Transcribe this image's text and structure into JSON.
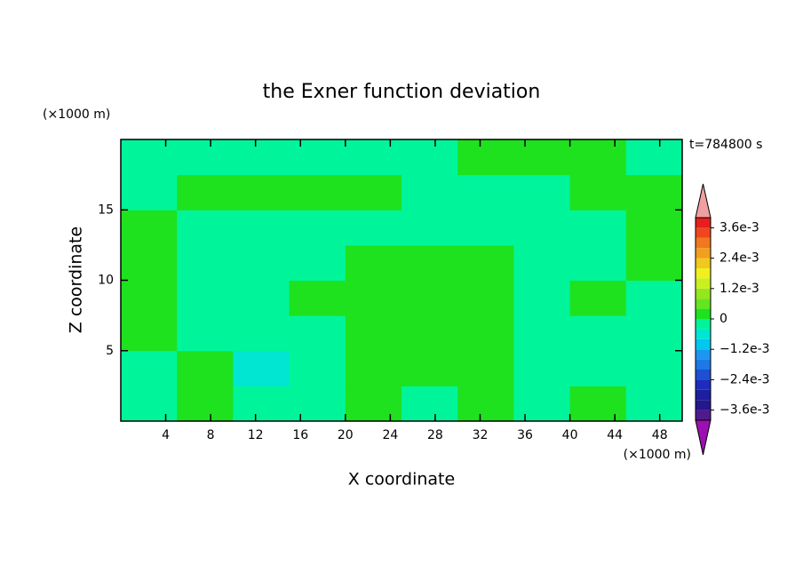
{
  "chart_data": {
    "type": "contour",
    "title": "the Exner function deviation",
    "x_label": "X coordinate",
    "y_label": "Z coordinate",
    "x_unit": "(×1000 m)",
    "y_unit": "(×1000 m)",
    "annotation": "t=784800 s",
    "xlim": [
      0,
      50
    ],
    "ylim": [
      0,
      20
    ],
    "xticks": [
      4,
      8,
      12,
      16,
      20,
      24,
      28,
      32,
      36,
      40,
      44,
      48
    ],
    "yticks": [
      5,
      10,
      15
    ],
    "x": [
      2.5,
      7.5,
      12.5,
      17.5,
      22.5,
      27.5,
      32.5,
      37.5,
      42.5,
      47.5
    ],
    "y": [
      1.25,
      3.75,
      6.25,
      8.75,
      11.25,
      13.75,
      16.25,
      18.75
    ],
    "z": [
      [
        -0.0002,
        0.0002,
        -0.0002,
        -0.0002,
        0.0002,
        -0.0002,
        0.0002,
        -0.0002,
        0.0002,
        -0.0002
      ],
      [
        -0.0002,
        0.0002,
        -0.0006,
        -0.0002,
        0.0002,
        0.0002,
        0.0002,
        -0.0002,
        -0.0002,
        -0.0002
      ],
      [
        0.0002,
        -0.0002,
        -0.0002,
        -0.0002,
        0.0002,
        0.0002,
        0.0002,
        -0.0002,
        -0.0002,
        -0.0002
      ],
      [
        0.0002,
        -0.0002,
        -0.0002,
        0.0002,
        0.0002,
        0.0002,
        0.0002,
        -0.0002,
        0.0002,
        -0.0002
      ],
      [
        0.0002,
        -0.0002,
        -0.0002,
        -0.0002,
        0.0002,
        0.0002,
        0.0002,
        -0.0002,
        -0.0002,
        0.0002
      ],
      [
        0.0002,
        -0.0002,
        -0.0002,
        -0.0002,
        -0.0002,
        -0.0002,
        -0.0002,
        -0.0002,
        -0.0002,
        0.0002
      ],
      [
        -0.0002,
        0.0002,
        0.0002,
        0.0002,
        0.0002,
        -0.0002,
        -0.0002,
        -0.0002,
        0.0002,
        0.0002
      ],
      [
        -0.0002,
        -0.0002,
        -0.0002,
        -0.0002,
        -0.0002,
        -0.0002,
        0.0002,
        0.0002,
        0.0002,
        -0.0002
      ]
    ],
    "levels": [
      -0.004,
      -0.0036,
      -0.0032,
      -0.0028,
      -0.0024,
      -0.002,
      -0.0016,
      -0.0012,
      -0.0008,
      -0.0004,
      0,
      0.0004,
      0.0008,
      0.0012,
      0.0016,
      0.002,
      0.0024,
      0.0028,
      0.0032,
      0.0036,
      0.004
    ],
    "colors": [
      "#9b10b0",
      "#501a8c",
      "#24188c",
      "#1e1ea0",
      "#1e2cbe",
      "#1e50d2",
      "#1e78e6",
      "#1e96f0",
      "#00c8f0",
      "#00e6d2",
      "#00f59b",
      "#1ee21e",
      "#64e61e",
      "#96e61e",
      "#c8f01e",
      "#f0f01e",
      "#f0c81e",
      "#f0a01e",
      "#f0781e",
      "#f0461e",
      "#e61e1e",
      "#f0a0a0"
    ],
    "colorbar_ticks": [
      {
        "value": 0.0036,
        "label": "3.6e-3"
      },
      {
        "value": 0.0024,
        "label": "2.4e-3"
      },
      {
        "value": 0.0012,
        "label": "1.2e-3"
      },
      0,
      {
        "value": -0.0012,
        "label": "−1.2e-3"
      },
      {
        "value": -0.0024,
        "label": "−2.4e-3"
      },
      {
        "value": -0.0036,
        "label": "−3.6e-3"
      }
    ]
  }
}
